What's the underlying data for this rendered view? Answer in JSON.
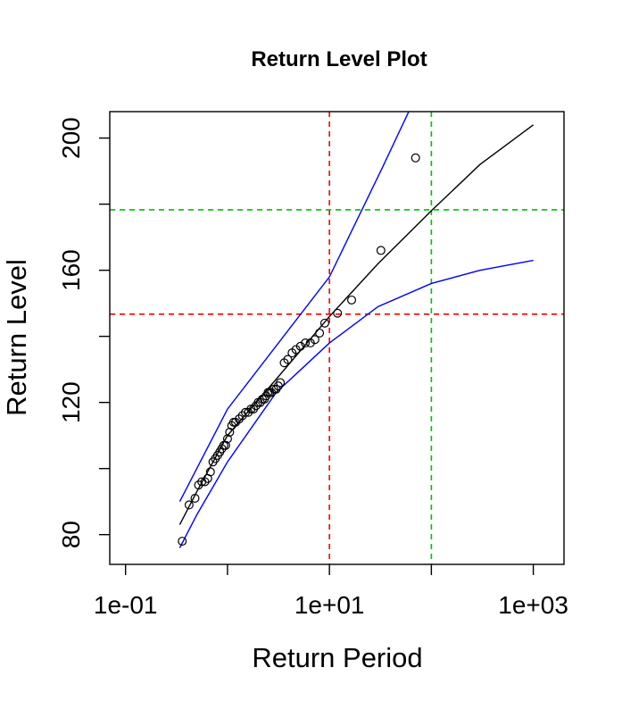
{
  "chart_data": {
    "type": "scatter",
    "title": "Return Level Plot",
    "xlabel": "Return Period",
    "ylabel": "Return Level",
    "x_scale": "log",
    "xlim": [
      0.07,
      2000
    ],
    "ylim": [
      71,
      208
    ],
    "x_ticks": [
      {
        "value": 0.1,
        "label": "1e-01"
      },
      {
        "value": 1,
        "label": ""
      },
      {
        "value": 10,
        "label": "1e+01"
      },
      {
        "value": 100,
        "label": ""
      },
      {
        "value": 1000,
        "label": "1e+03"
      }
    ],
    "y_ticks": [
      {
        "value": 80,
        "label": "80"
      },
      {
        "value": 100,
        "label": ""
      },
      {
        "value": 120,
        "label": "120"
      },
      {
        "value": 140,
        "label": ""
      },
      {
        "value": 160,
        "label": "160"
      },
      {
        "value": 180,
        "label": ""
      },
      {
        "value": 200,
        "label": "200"
      }
    ],
    "grid": false,
    "reference_lines": [
      {
        "orientation": "vertical",
        "value": 10,
        "color": "#ff0000",
        "style": "dashed"
      },
      {
        "orientation": "horizontal",
        "value": 146.7,
        "color": "#ff0000",
        "style": "dashed"
      },
      {
        "orientation": "vertical",
        "value": 100,
        "color": "#00c000",
        "style": "dashed"
      },
      {
        "orientation": "horizontal",
        "value": 178.3,
        "color": "#00c000",
        "style": "dashed"
      }
    ],
    "series": [
      {
        "type": "line",
        "color": "#000000",
        "x": [
          0.34,
          0.5,
          1,
          3,
          10,
          30,
          100,
          300,
          1000
        ],
        "y": [
          83,
          93,
          110,
          127,
          146,
          162,
          178,
          192,
          204
        ]
      },
      {
        "type": "line",
        "color": "#0000ff",
        "x": [
          0.34,
          1,
          10,
          33,
          60
        ],
        "y": [
          90,
          118,
          158,
          191,
          208
        ]
      },
      {
        "type": "line",
        "color": "#0000ff",
        "x": [
          0.34,
          0.5,
          1,
          3,
          10,
          30,
          100,
          300,
          1000
        ],
        "y": [
          76,
          86,
          102,
          123,
          138,
          149,
          156,
          160,
          163
        ]
      },
      {
        "type": "points",
        "color": "#000000",
        "x": [
          0.36,
          0.42,
          0.48,
          0.52,
          0.56,
          0.6,
          0.64,
          0.68,
          0.72,
          0.76,
          0.8,
          0.84,
          0.88,
          0.92,
          0.96,
          1.0,
          1.05,
          1.1,
          1.15,
          1.2,
          1.3,
          1.4,
          1.5,
          1.6,
          1.7,
          1.8,
          1.9,
          2.0,
          2.1,
          2.2,
          2.3,
          2.4,
          2.5,
          2.6,
          2.7,
          2.85,
          3.0,
          3.15,
          3.3,
          3.6,
          3.9,
          4.3,
          4.7,
          5.2,
          5.8,
          6.5,
          7.2,
          8.0,
          9.0,
          12.0,
          16.5,
          32.0,
          70.0
        ],
        "y": [
          78,
          89,
          91,
          95,
          96,
          96,
          97,
          99,
          102,
          103,
          104,
          105,
          106,
          107,
          107,
          109,
          111,
          113,
          114,
          114,
          115,
          116,
          117,
          117,
          118,
          118,
          119,
          120,
          120,
          121,
          121,
          122,
          123,
          123,
          123,
          124,
          124,
          125,
          126,
          132,
          133,
          135,
          136,
          137,
          138,
          138,
          139,
          141,
          144,
          147,
          151,
          166,
          194
        ]
      }
    ]
  }
}
